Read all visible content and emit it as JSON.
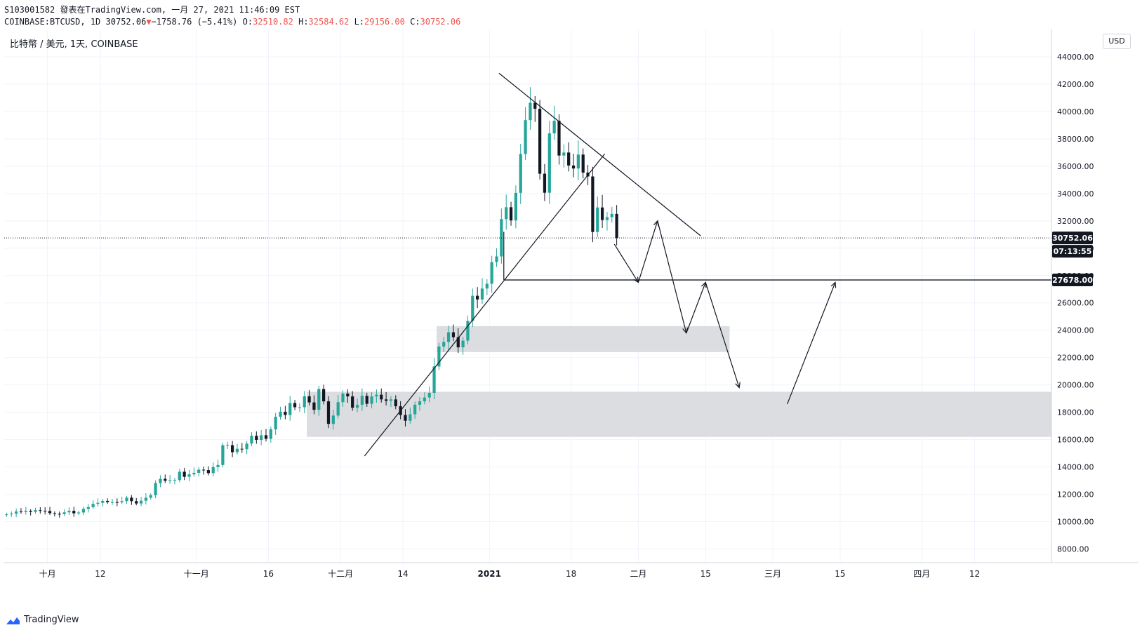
{
  "header": {
    "line1": "S103001582 發表在TradingView.com, 一月 27, 2021 11:46:09 EST",
    "symbol": "COINBASE:BTCUSD, 1D",
    "last": "30752.06",
    "change_arrow": "▼",
    "change": "−1758.76 (−5.41%)",
    "o_label": "O:",
    "o_val": "32510.82",
    "h_label": "H:",
    "h_val": "32584.62",
    "l_label": "L:",
    "l_val": "29156.00",
    "c_label": "C:",
    "c_val": "30752.06"
  },
  "symbol_label": "比特幣 / 美元, 1天, COINBASE",
  "currency": "USD",
  "brand": "TradingView",
  "colors": {
    "up": "#26a69a",
    "down": "#131722",
    "zone": "#dcdde0",
    "grid": "#f0f3fa",
    "axis_text": "#131722"
  },
  "chart_data": {
    "type": "candlestick",
    "y_axis": {
      "ylim": [
        7000,
        46000
      ],
      "ticks": [
        8000,
        10000,
        12000,
        14000,
        16000,
        18000,
        20000,
        22000,
        24000,
        26000,
        28000,
        30000,
        32000,
        34000,
        36000,
        38000,
        40000,
        42000,
        44000
      ]
    },
    "x_axis": {
      "start": "2020-09-22",
      "end": "2021-04-28",
      "ticks": [
        {
          "date": "2020-10-01",
          "label": "十月"
        },
        {
          "date": "2020-10-12",
          "label": "12"
        },
        {
          "date": "2020-11-01",
          "label": "十一月"
        },
        {
          "date": "2020-11-16",
          "label": "16"
        },
        {
          "date": "2020-12-01",
          "label": "十二月"
        },
        {
          "date": "2020-12-14",
          "label": "14"
        },
        {
          "date": "2021-01-01",
          "label": "2021"
        },
        {
          "date": "2021-01-18",
          "label": "18"
        },
        {
          "date": "2021-02-01",
          "label": "二月"
        },
        {
          "date": "2021-02-15",
          "label": "15"
        },
        {
          "date": "2021-03-01",
          "label": "三月"
        },
        {
          "date": "2021-03-15",
          "label": "15"
        },
        {
          "date": "2021-04-01",
          "label": "四月"
        },
        {
          "date": "2021-04-12",
          "label": "12"
        }
      ]
    },
    "first_candle_date": "2020-09-22",
    "closes": [
      10530,
      10580,
      10740,
      10700,
      10780,
      10710,
      10840,
      10790,
      10780,
      10620,
      10570,
      10550,
      10680,
      10790,
      10610,
      10670,
      10930,
      11060,
      11300,
      11380,
      11520,
      11430,
      11430,
      11410,
      11500,
      11750,
      11500,
      11330,
      11530,
      11750,
      11930,
      12820,
      13130,
      12990,
      13040,
      13040,
      13650,
      13280,
      13460,
      13570,
      13800,
      13770,
      13550,
      13990,
      14140,
      15590,
      15590,
      15080,
      15330,
      15300,
      15710,
      16280,
      15980,
      16320,
      16060,
      16750,
      17670,
      18040,
      17800,
      18680,
      18370,
      18370,
      19170,
      18720,
      18180,
      19700,
      18800,
      17150,
      17760,
      18740,
      19370,
      19160,
      18330,
      18550,
      19200,
      18620,
      19160,
      19280,
      18940,
      18840,
      18940,
      18440,
      17800,
      17380,
      17850,
      18550,
      18800,
      19080,
      19420,
      21350,
      22810,
      23140,
      23850,
      23490,
      22750,
      23240,
      24680,
      26520,
      26250,
      27050,
      27400,
      28980,
      29400,
      32130,
      33000,
      32030,
      34050,
      36890,
      39370,
      40640,
      40200,
      35450,
      34060,
      38400,
      39320,
      36780,
      37000,
      36050,
      35830,
      36850,
      35530,
      35250,
      31190,
      32980,
      32060,
      32270,
      32510,
      30752
    ],
    "annotations": {
      "hline": 27678,
      "hline_label": "27678.00",
      "last_label": "30752.06",
      "countdown_label": "07:13:55",
      "zones": [
        {
          "from": "2020-12-21",
          "to": "2021-02-20",
          "low": 22400,
          "high": 24300
        },
        {
          "from": "2020-11-24",
          "to": "2021-04-28",
          "low": 16200,
          "high": 19500
        }
      ],
      "trendlines": [
        {
          "p1": [
            "2020-12-06",
            14800
          ],
          "p2": [
            "2021-01-25",
            36900
          ]
        },
        {
          "p1": [
            "2021-01-03",
            42800
          ],
          "p2": [
            "2021-02-14",
            30900
          ]
        },
        {
          "p1": [
            "2021-01-04",
            27678
          ],
          "p2": [
            "2021-01-04",
            31200
          ]
        }
      ],
      "path_arrows": [
        {
          "points": [
            [
              "2021-01-27",
              30300
            ],
            [
              "2021-02-01",
              27500
            ],
            [
              "2021-02-05",
              32000
            ],
            [
              "2021-02-11",
              23800
            ],
            [
              "2021-02-15",
              27500
            ],
            [
              "2021-02-22",
              19800
            ]
          ]
        },
        {
          "points": [
            [
              "2021-03-04",
              18600
            ],
            [
              "2021-03-14",
              27500
            ]
          ]
        }
      ]
    }
  }
}
